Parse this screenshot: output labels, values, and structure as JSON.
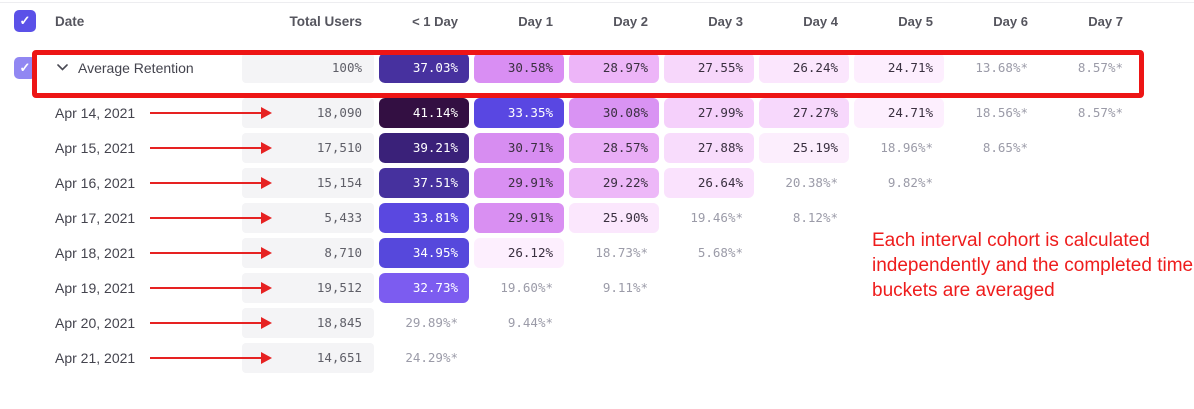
{
  "header": {
    "date": "Date",
    "total_users": "Total Users",
    "days": [
      "< 1 Day",
      "Day 1",
      "Day 2",
      "Day 3",
      "Day 4",
      "Day 5",
      "Day 6",
      "Day 7"
    ]
  },
  "rows": [
    {
      "id": "average",
      "label": "Average Retention",
      "is_average": true,
      "total": "100%",
      "cells": [
        {
          "v": "37.03%",
          "bg": "#47319f",
          "fg": "#ffffff"
        },
        {
          "v": "30.58%",
          "bg": "#d98ef3",
          "fg": "#3a3040"
        },
        {
          "v": "28.97%",
          "bg": "#edb5f8",
          "fg": "#3a3040"
        },
        {
          "v": "27.55%",
          "bg": "#f7d7fb",
          "fg": "#3a3040"
        },
        {
          "v": "26.24%",
          "bg": "#fbe6fd",
          "fg": "#3a3040"
        },
        {
          "v": "24.71%",
          "bg": "#fdeefe",
          "fg": "#3a3040"
        },
        {
          "v": "13.68%*",
          "bg": null,
          "fg": "#9b9ba8"
        },
        {
          "v": "8.57%*",
          "bg": null,
          "fg": "#9b9ba8"
        }
      ]
    },
    {
      "id": "apr-14-2021",
      "label": "Apr 14, 2021",
      "is_average": false,
      "total": "18,090",
      "cells": [
        {
          "v": "41.14%",
          "bg": "#330f42",
          "fg": "#ffffff"
        },
        {
          "v": "33.35%",
          "bg": "#5947e2",
          "fg": "#ffffff"
        },
        {
          "v": "30.08%",
          "bg": "#d993f3",
          "fg": "#3a3040"
        },
        {
          "v": "27.99%",
          "bg": "#f5d0fb",
          "fg": "#3a3040"
        },
        {
          "v": "27.27%",
          "bg": "#f7d8fc",
          "fg": "#3a3040"
        },
        {
          "v": "24.71%",
          "bg": "#fdeffe",
          "fg": "#3a3040"
        },
        {
          "v": "18.56%*",
          "bg": null,
          "fg": "#9b9ba8"
        },
        {
          "v": "8.57%*",
          "bg": null,
          "fg": "#9b9ba8"
        }
      ]
    },
    {
      "id": "apr-15-2021",
      "label": "Apr 15, 2021",
      "is_average": false,
      "total": "17,510",
      "cells": [
        {
          "v": "39.21%",
          "bg": "#3a2179",
          "fg": "#ffffff"
        },
        {
          "v": "30.71%",
          "bg": "#d78df1",
          "fg": "#3a3040"
        },
        {
          "v": "28.57%",
          "bg": "#e9adf6",
          "fg": "#3a3040"
        },
        {
          "v": "27.88%",
          "bg": "#f8dcfc",
          "fg": "#3a3040"
        },
        {
          "v": "25.19%",
          "bg": "#fceefd",
          "fg": "#3a3040"
        },
        {
          "v": "18.96%*",
          "bg": null,
          "fg": "#9b9ba8"
        },
        {
          "v": "8.65%*",
          "bg": null,
          "fg": "#9b9ba8"
        },
        null
      ]
    },
    {
      "id": "apr-16-2021",
      "label": "Apr 16, 2021",
      "is_average": false,
      "total": "15,154",
      "cells": [
        {
          "v": "37.51%",
          "bg": "#46319e",
          "fg": "#ffffff"
        },
        {
          "v": "29.91%",
          "bg": "#d98ff2",
          "fg": "#3a3040"
        },
        {
          "v": "29.22%",
          "bg": "#edb8f8",
          "fg": "#3a3040"
        },
        {
          "v": "26.64%",
          "bg": "#fae2fd",
          "fg": "#3a3040"
        },
        {
          "v": "20.38%*",
          "bg": null,
          "fg": "#9b9ba8"
        },
        {
          "v": "9.82%*",
          "bg": null,
          "fg": "#9b9ba8"
        },
        null,
        null
      ]
    },
    {
      "id": "apr-17-2021",
      "label": "Apr 17, 2021",
      "is_average": false,
      "total": "5,433",
      "cells": [
        {
          "v": "33.81%",
          "bg": "#5a48e0",
          "fg": "#ffffff"
        },
        {
          "v": "29.91%",
          "bg": "#d98ff2",
          "fg": "#3a3040"
        },
        {
          "v": "25.90%",
          "bg": "#fbe7fd",
          "fg": "#3a3040"
        },
        {
          "v": "19.46%*",
          "bg": null,
          "fg": "#9b9ba8"
        },
        {
          "v": "8.12%*",
          "bg": null,
          "fg": "#9b9ba8"
        },
        null,
        null,
        null
      ]
    },
    {
      "id": "apr-18-2021",
      "label": "Apr 18, 2021",
      "is_average": false,
      "total": "8,710",
      "cells": [
        {
          "v": "34.95%",
          "bg": "#5648dc",
          "fg": "#ffffff"
        },
        {
          "v": "26.12%",
          "bg": "#fdeffe",
          "fg": "#3a3040"
        },
        {
          "v": "18.73%*",
          "bg": null,
          "fg": "#9b9ba8"
        },
        {
          "v": "5.68%*",
          "bg": null,
          "fg": "#9b9ba8"
        },
        null,
        null,
        null,
        null
      ]
    },
    {
      "id": "apr-19-2021",
      "label": "Apr 19, 2021",
      "is_average": false,
      "total": "19,512",
      "cells": [
        {
          "v": "32.73%",
          "bg": "#7c5cf0",
          "fg": "#ffffff"
        },
        {
          "v": "19.60%*",
          "bg": null,
          "fg": "#9b9ba8"
        },
        {
          "v": "9.11%*",
          "bg": null,
          "fg": "#9b9ba8"
        },
        null,
        null,
        null,
        null,
        null
      ]
    },
    {
      "id": "apr-20-2021",
      "label": "Apr 20, 2021",
      "is_average": false,
      "total": "18,845",
      "cells": [
        {
          "v": "29.89%*",
          "bg": null,
          "fg": "#9b9ba8"
        },
        {
          "v": "9.44%*",
          "bg": null,
          "fg": "#9b9ba8"
        },
        null,
        null,
        null,
        null,
        null,
        null
      ]
    },
    {
      "id": "apr-21-2021",
      "label": "Apr 21, 2021",
      "is_average": false,
      "total": "14,651",
      "cells": [
        {
          "v": "24.29%*",
          "bg": null,
          "fg": "#9b9ba8"
        },
        null,
        null,
        null,
        null,
        null,
        null,
        null
      ]
    }
  ],
  "annotation": {
    "text": "Each interval cohort is calculated independently and the completed time buckets are averaged"
  },
  "colors": {
    "header_checkbox": "#5b51e8",
    "average_row_checkbox": "#9187f2",
    "highlight_red": "#ed1515",
    "arrow_red": "#e62222",
    "annotation_red": "#ee1c1c",
    "total_cell_bg": "#f4f4f6"
  },
  "icons": {
    "check": "✓"
  }
}
